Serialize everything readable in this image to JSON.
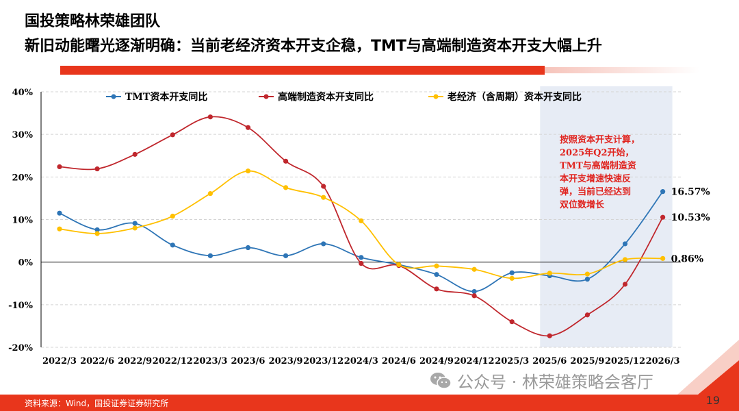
{
  "header": {
    "title": "国投策略林荣雄团队",
    "subtitle": "新旧动能曙光逐渐明确：当前老经济资本开支企稳，TMT与高端制造资本开支大幅上升"
  },
  "annotation": {
    "lines": [
      "按照资本开支计算，",
      "2025年Q2开始，",
      "TMT与高端制造资",
      "本开支增速快速反",
      "弹，当前已经达到",
      "双位数增长"
    ]
  },
  "end_labels": [
    "16.57%",
    "10.53%",
    "0.86%"
  ],
  "footer": {
    "source": "资料来源：Wind，国投证券证券研究所",
    "page_number": "19",
    "watermark": "公众号 · 林荣雄策略会客厅",
    "watermark_icon": "wechat-icon"
  },
  "colors": {
    "tmt": "#2e75b6",
    "high_end": "#c0272d",
    "old_economy": "#ffc000",
    "accent_red": "#e8361c",
    "shade": "#e7ecf5"
  },
  "chart_data": {
    "type": "line",
    "categories": [
      "2022/3",
      "2022/6",
      "2022/9",
      "2022/12",
      "2023/3",
      "2023/6",
      "2023/9",
      "2023/12",
      "2024/3",
      "2024/6",
      "2024/9",
      "2024/12",
      "2025/3",
      "2025/6",
      "2025/9",
      "2025/12",
      "2026/3"
    ],
    "series": [
      {
        "name": "TMT资本开支同比",
        "values": [
          11.5,
          7.6,
          9.1,
          4.0,
          1.5,
          3.4,
          1.5,
          4.3,
          1.1,
          -0.6,
          -2.9,
          -6.9,
          -2.5,
          -3.2,
          -4.0,
          4.3,
          16.57
        ]
      },
      {
        "name": "高端制造资本开支同比",
        "values": [
          22.4,
          21.9,
          25.3,
          29.9,
          34.1,
          31.6,
          23.7,
          17.8,
          -0.3,
          -0.8,
          -6.3,
          -7.9,
          -14.0,
          -17.3,
          -12.4,
          -5.2,
          10.53
        ]
      },
      {
        "name": "老经济（含周期）资本开支同比",
        "values": [
          7.8,
          6.7,
          8.0,
          10.8,
          16.1,
          21.4,
          17.5,
          15.2,
          9.7,
          -0.6,
          -0.9,
          -1.7,
          -3.8,
          -2.6,
          -2.8,
          0.6,
          0.86
        ]
      }
    ],
    "y_ticks": [
      "40%",
      "30%",
      "20%",
      "10%",
      "0%",
      "-10%",
      "-20%"
    ],
    "ylim": [
      -20,
      40
    ],
    "highlight_from": "2025/6",
    "grid": "horizontal dashed",
    "legend_position": "top"
  }
}
